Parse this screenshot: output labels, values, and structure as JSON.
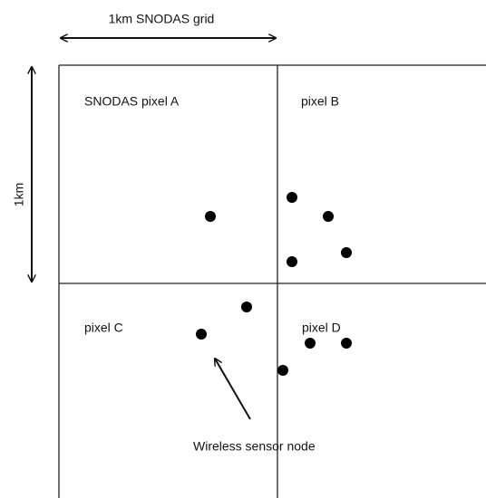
{
  "grid_label": "1km SNODAS grid",
  "side_label": "1km",
  "pixels": [
    "SNODAS pixel A",
    "pixel B",
    "pixel C",
    "pixel D"
  ],
  "pointer_label": "Wireless sensor node"
}
